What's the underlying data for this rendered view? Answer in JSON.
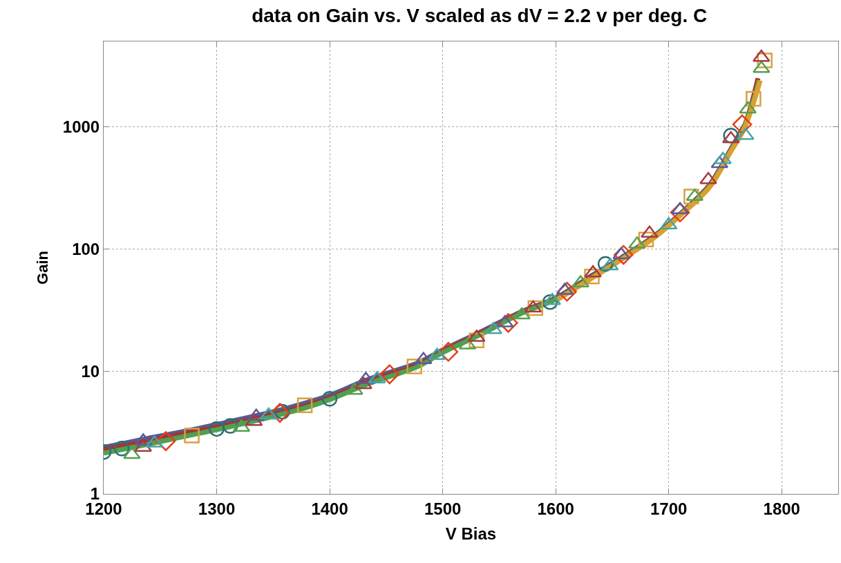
{
  "chart_data": {
    "type": "scatter",
    "title": "data on Gain vs. V scaled as dV = 2.2 v per deg. C",
    "xlabel": "V Bias",
    "ylabel": "Gain",
    "log": "y",
    "grid": true,
    "xlim": [
      1200,
      1850
    ],
    "xticks": [
      1200,
      1300,
      1400,
      1500,
      1600,
      1700,
      1800
    ],
    "ylim": [
      1,
      5000
    ],
    "yticks": [
      1,
      10,
      100,
      1000
    ],
    "series": [
      {
        "type": "line",
        "color": "#5a5a8c",
        "x": [
          1200,
          1235,
          1275,
          1300,
          1350,
          1380,
          1400,
          1435,
          1478,
          1500,
          1533,
          1570,
          1600,
          1632,
          1656,
          1687,
          1711,
          1736,
          1755,
          1767
        ],
        "values": [
          2.4,
          2.8,
          3.3,
          3.7,
          4.7,
          5.6,
          6.4,
          8.7,
          11.8,
          15,
          21,
          31,
          40,
          61,
          83,
          128,
          198,
          335,
          660,
          1030
        ]
      },
      {
        "type": "line",
        "color": "#a83232",
        "x": [
          1200,
          1235,
          1275,
          1300,
          1350,
          1380,
          1400,
          1435,
          1478,
          1500,
          1533,
          1570,
          1600,
          1632,
          1656,
          1687,
          1711,
          1736,
          1755,
          1767,
          1779
        ],
        "values": [
          2.3,
          2.65,
          3.15,
          3.5,
          4.45,
          5.3,
          6.1,
          8.3,
          11.3,
          14.6,
          20.5,
          30.5,
          39.5,
          60,
          82,
          126,
          195,
          330,
          650,
          1020,
          2500
        ]
      },
      {
        "type": "line",
        "color": "#4fa04f",
        "x": [
          1200,
          1235,
          1275,
          1300,
          1350,
          1380,
          1400,
          1435,
          1478,
          1500,
          1533,
          1570,
          1600,
          1632,
          1656,
          1687,
          1711,
          1736,
          1755,
          1767,
          1780
        ],
        "values": [
          2.15,
          2.5,
          3.0,
          3.35,
          4.3,
          5.1,
          5.9,
          8.0,
          11,
          14.3,
          20,
          30,
          39,
          59,
          81,
          125,
          193,
          325,
          640,
          1000,
          2400
        ]
      },
      {
        "type": "line",
        "color": "#d9a030",
        "x": [
          1600,
          1632,
          1656,
          1687,
          1711,
          1736,
          1755,
          1767,
          1781
        ],
        "values": [
          38,
          58,
          80,
          124,
          192,
          320,
          630,
          980,
          2400
        ]
      },
      {
        "marker": "circle",
        "color": "#2e6f73",
        "x": [
          1200,
          1216,
          1300,
          1312,
          1358,
          1400,
          1595,
          1644,
          1755
        ],
        "values": [
          2.2,
          2.35,
          3.4,
          3.6,
          4.7,
          6.0,
          37,
          76,
          850
        ]
      },
      {
        "marker": "square",
        "color": "#d9a13b",
        "x": [
          1278,
          1378,
          1475,
          1530,
          1582,
          1632,
          1680,
          1720,
          1775,
          1785
        ],
        "values": [
          3.0,
          5.3,
          11,
          18,
          33,
          60,
          120,
          270,
          1700,
          3500
        ]
      },
      {
        "marker": "diamond",
        "color": "#e0401a",
        "x": [
          1255,
          1356,
          1453,
          1505,
          1558,
          1610,
          1660,
          1710,
          1765
        ],
        "values": [
          2.7,
          4.6,
          9.5,
          14.5,
          25,
          45,
          90,
          200,
          1050
        ]
      },
      {
        "marker": "triangle",
        "color": "#56a050",
        "x": [
          1225,
          1322,
          1422,
          1522,
          1570,
          1622,
          1672,
          1723,
          1770,
          1782
        ],
        "values": [
          2.1,
          3.5,
          7.0,
          16.5,
          29,
          53,
          110,
          270,
          1400,
          3000
        ]
      },
      {
        "marker": "triangle",
        "color": "#a83a40",
        "x": [
          1235,
          1333,
          1430,
          1530,
          1580,
          1633,
          1683,
          1735,
          1755,
          1782
        ],
        "values": [
          2.4,
          3.9,
          7.8,
          19,
          33,
          64,
          135,
          370,
          800,
          3700
        ]
      },
      {
        "marker": "triangle",
        "color": "#5b5b96",
        "x": [
          1235,
          1335,
          1432,
          1483,
          1555,
          1608,
          1658,
          1710,
          1745
        ],
        "values": [
          2.7,
          4.3,
          8.6,
          12.5,
          25,
          46,
          90,
          210,
          500
        ]
      },
      {
        "marker": "triangle",
        "color": "#4aa5a5",
        "x": [
          1245,
          1346,
          1442,
          1495,
          1545,
          1597,
          1648,
          1700,
          1748,
          1768
        ],
        "values": [
          2.6,
          4.4,
          8.7,
          13.5,
          22,
          38,
          73,
          158,
          540,
          850
        ]
      }
    ]
  }
}
